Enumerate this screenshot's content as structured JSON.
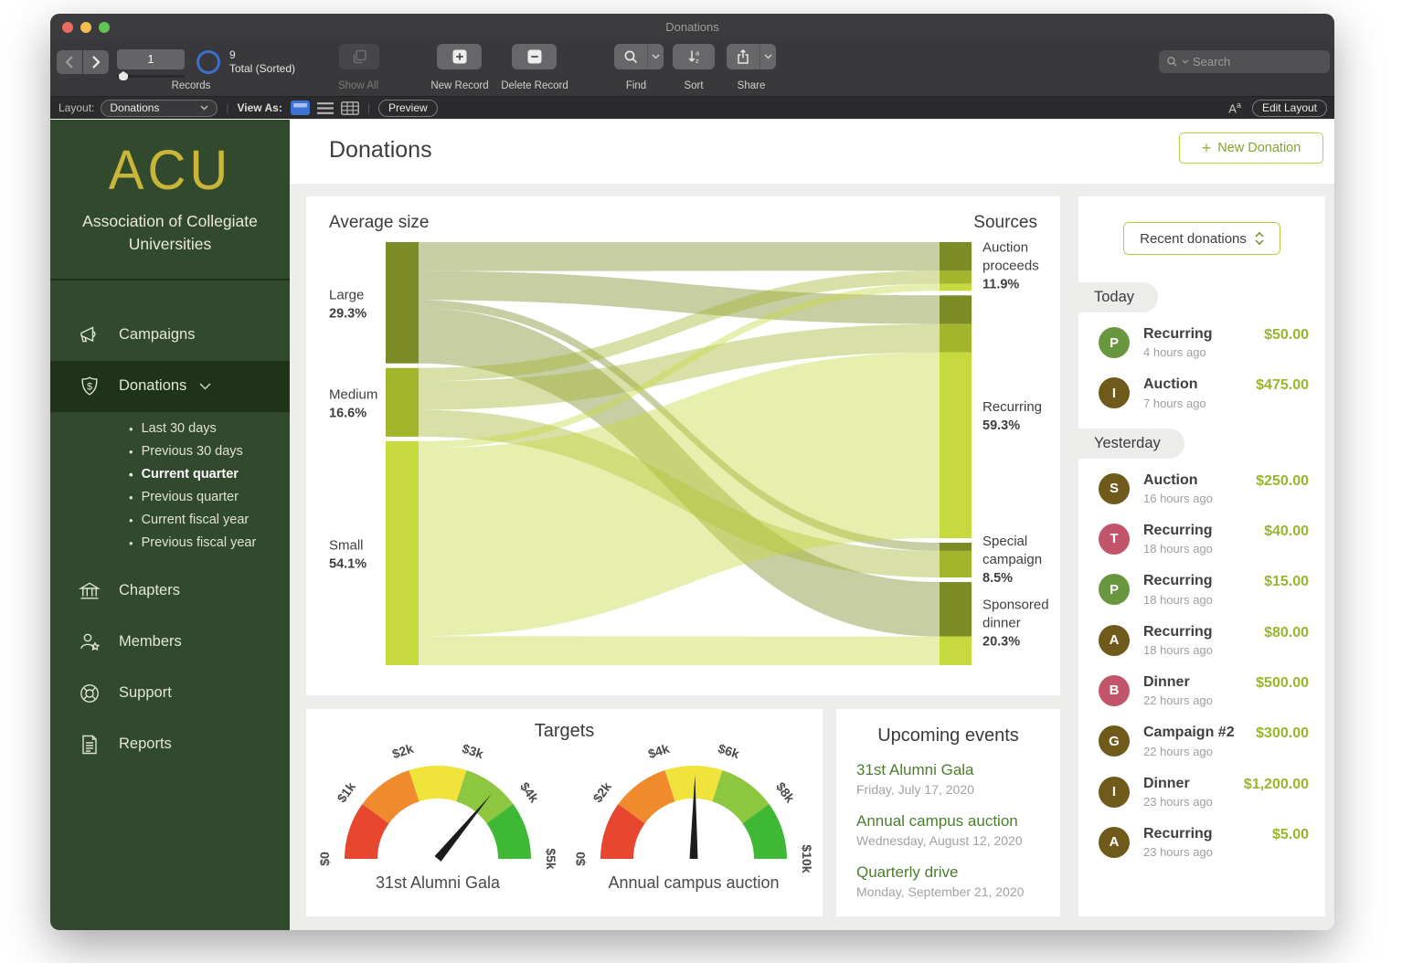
{
  "window": {
    "title": "Donations"
  },
  "toolbar": {
    "records": {
      "current": "1",
      "count": "9",
      "count_label": "Total (Sorted)",
      "group_label": "Records"
    },
    "show_all_label": "Show All",
    "new_record_label": "New Record",
    "delete_record_label": "Delete Record",
    "find_label": "Find",
    "sort_label": "Sort",
    "share_label": "Share",
    "search_placeholder": "Search"
  },
  "layout_bar": {
    "layout_label": "Layout:",
    "layout_value": "Donations",
    "view_as_label": "View As:",
    "preview_label": "Preview",
    "format_label": "A",
    "format_label_sup": "a",
    "edit_layout_label": "Edit Layout"
  },
  "sidebar": {
    "logo": "ACU",
    "org_name": "Association of Collegiate Universities",
    "items": [
      {
        "label": "Campaigns",
        "icon": "megaphone-icon"
      },
      {
        "label": "Donations",
        "icon": "shield-dollar-icon",
        "active": true,
        "expanded": true,
        "children": [
          {
            "label": "Last 30 days"
          },
          {
            "label": "Previous 30 days"
          },
          {
            "label": "Current quarter",
            "current": true
          },
          {
            "label": "Previous quarter"
          },
          {
            "label": "Current fiscal year"
          },
          {
            "label": "Previous fiscal year"
          }
        ]
      },
      {
        "label": "Chapters",
        "icon": "bank-icon"
      },
      {
        "label": "Members",
        "icon": "member-star-icon"
      },
      {
        "label": "Support",
        "icon": "lifebuoy-icon"
      },
      {
        "label": "Reports",
        "icon": "report-icon"
      }
    ]
  },
  "main": {
    "title": "Donations",
    "new_donation": {
      "icon": "+",
      "label": "New Donation"
    }
  },
  "chart_data": [
    {
      "type": "sankey",
      "title_left": "Average size",
      "title_right": "Sources",
      "left_nodes": [
        {
          "label": "Large",
          "pct": "29.3%",
          "value": 29.3,
          "color": "#7d8b26"
        },
        {
          "label": "Medium",
          "pct": "16.6%",
          "value": 16.6,
          "color": "#a3b52d"
        },
        {
          "label": "Small",
          "pct": "54.1%",
          "value": 54.1,
          "color": "#c6d93f"
        }
      ],
      "right_nodes": [
        {
          "label": "Auction proceeds",
          "pct": "11.9%",
          "value": 11.9
        },
        {
          "label": "Recurring",
          "pct": "59.3%",
          "value": 59.3
        },
        {
          "label": "Special campaign",
          "pct": "8.5%",
          "value": 8.5
        },
        {
          "label": "Sponsored dinner",
          "pct": "20.3%",
          "value": 20.3
        }
      ],
      "flows": [
        {
          "from": 0,
          "to": 0,
          "value": 7.0
        },
        {
          "from": 0,
          "to": 1,
          "value": 7.0
        },
        {
          "from": 0,
          "to": 2,
          "value": 2.0
        },
        {
          "from": 0,
          "to": 3,
          "value": 13.3
        },
        {
          "from": 1,
          "to": 0,
          "value": 3.2
        },
        {
          "from": 1,
          "to": 1,
          "value": 6.9
        },
        {
          "from": 1,
          "to": 2,
          "value": 6.5
        },
        {
          "from": 2,
          "to": 0,
          "value": 1.7
        },
        {
          "from": 2,
          "to": 1,
          "value": 45.4
        },
        {
          "from": 2,
          "to": 3,
          "value": 7.0
        }
      ]
    },
    {
      "type": "gauge",
      "caption": "31st Alumni Gala",
      "min": 0,
      "max": 5000,
      "value": 3600,
      "tick_labels": [
        "$0",
        "$1k",
        "$2k",
        "$3k",
        "$4k",
        "$5k"
      ],
      "segment_colors": [
        "#e8472f",
        "#f08b2d",
        "#efe33c",
        "#8dc63f",
        "#3fb935"
      ]
    },
    {
      "type": "gauge",
      "caption": "Annual campus auction",
      "min": 0,
      "max": 10000,
      "value": 5050,
      "tick_labels": [
        "$0",
        "$2k",
        "$4k",
        "$6k",
        "$8k",
        "$10k"
      ],
      "segment_colors": [
        "#e8472f",
        "#f08b2d",
        "#efe33c",
        "#8dc63f",
        "#3fb935"
      ]
    }
  ],
  "targets": {
    "title": "Targets"
  },
  "upcoming_events": {
    "title": "Upcoming events",
    "items": [
      {
        "name": "31st Alumni Gala",
        "date": "Friday, July 17, 2020"
      },
      {
        "name": "Annual campus auction",
        "date": "Wednesday, August 12, 2020"
      },
      {
        "name": "Quarterly drive",
        "date": "Monday, September 21, 2020"
      }
    ]
  },
  "recent_donations": {
    "selector_label": "Recent donations",
    "groups": [
      {
        "label": "Today",
        "items": [
          {
            "initial": "P",
            "avatar_color": "#68973f",
            "type": "Recurring",
            "time": "4 hours ago",
            "amount": "$50.00"
          },
          {
            "initial": "I",
            "avatar_color": "#6f5a1c",
            "type": "Auction",
            "time": "7 hours ago",
            "amount": "$475.00"
          }
        ]
      },
      {
        "label": "Yesterday",
        "items": [
          {
            "initial": "S",
            "avatar_color": "#6f5a1c",
            "type": "Auction",
            "time": "16 hours ago",
            "amount": "$250.00"
          },
          {
            "initial": "T",
            "avatar_color": "#c2556b",
            "type": "Recurring",
            "time": "18 hours ago",
            "amount": "$40.00"
          },
          {
            "initial": "P",
            "avatar_color": "#68973f",
            "type": "Recurring",
            "time": "18 hours ago",
            "amount": "$15.00"
          },
          {
            "initial": "A",
            "avatar_color": "#6f5a1c",
            "type": "Recurring",
            "time": "18 hours ago",
            "amount": "$80.00"
          },
          {
            "initial": "B",
            "avatar_color": "#c2556b",
            "type": "Dinner",
            "time": "22 hours ago",
            "amount": "$500.00"
          },
          {
            "initial": "G",
            "avatar_color": "#6f5a1c",
            "type": "Campaign #2",
            "time": "22 hours ago",
            "amount": "$300.00"
          },
          {
            "initial": "I",
            "avatar_color": "#6f5a1c",
            "type": "Dinner",
            "time": "23 hours ago",
            "amount": "$1,200.00"
          },
          {
            "initial": "A",
            "avatar_color": "#6f5a1c",
            "type": "Recurring",
            "time": "23 hours ago",
            "amount": "$5.00"
          }
        ]
      }
    ]
  },
  "colors": {
    "sidebar_green": "#31492c",
    "sidebar_active": "#1e3317",
    "brand_gold": "#c9b53a",
    "accent_border": "#bdd03f",
    "accent_text": "#84a42e",
    "amount_green": "#97b62c",
    "needle_black": "#1c1c1c"
  }
}
